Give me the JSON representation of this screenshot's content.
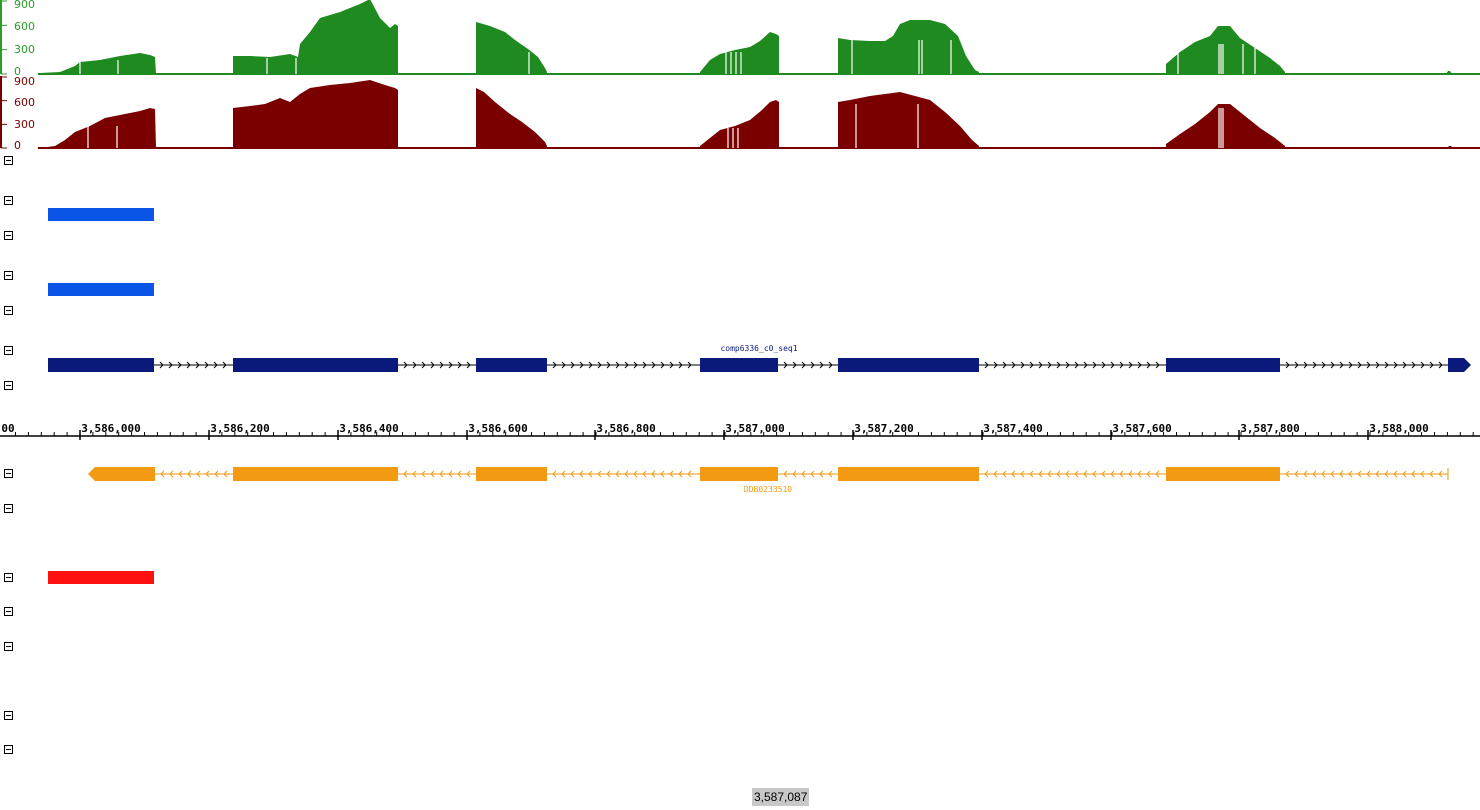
{
  "coverage_tracks": [
    {
      "name": "coverage-green",
      "color": "#1f8a1f",
      "axis_color": "#2a9d2a",
      "y_ticks": [
        "900",
        "600",
        "300",
        "0"
      ]
    },
    {
      "name": "coverage-red",
      "color": "#7a0000",
      "axis_color": "#7a0000",
      "y_ticks": [
        "900",
        "600",
        "300",
        "0"
      ]
    }
  ],
  "colors": {
    "blue_feature": "#0a55e6",
    "transcript": "#0a1a7a",
    "gene": "#f29a11",
    "red_feature": "#ff1111"
  },
  "transcript": {
    "name": "comp6336_c0_seq1",
    "strand": "+"
  },
  "gene": {
    "name": "DDB0233510",
    "strand": "-"
  },
  "ruler": {
    "partial_left_label": "00",
    "tick_labels": [
      "3,586,000",
      "3,586,200",
      "3,586,400",
      "3,586,600",
      "3,586,800",
      "3,587,000",
      "3,587,200",
      "3,587,400",
      "3,587,600",
      "3,587,800",
      "3,588,000"
    ]
  },
  "position_readout": "3,587,087"
}
